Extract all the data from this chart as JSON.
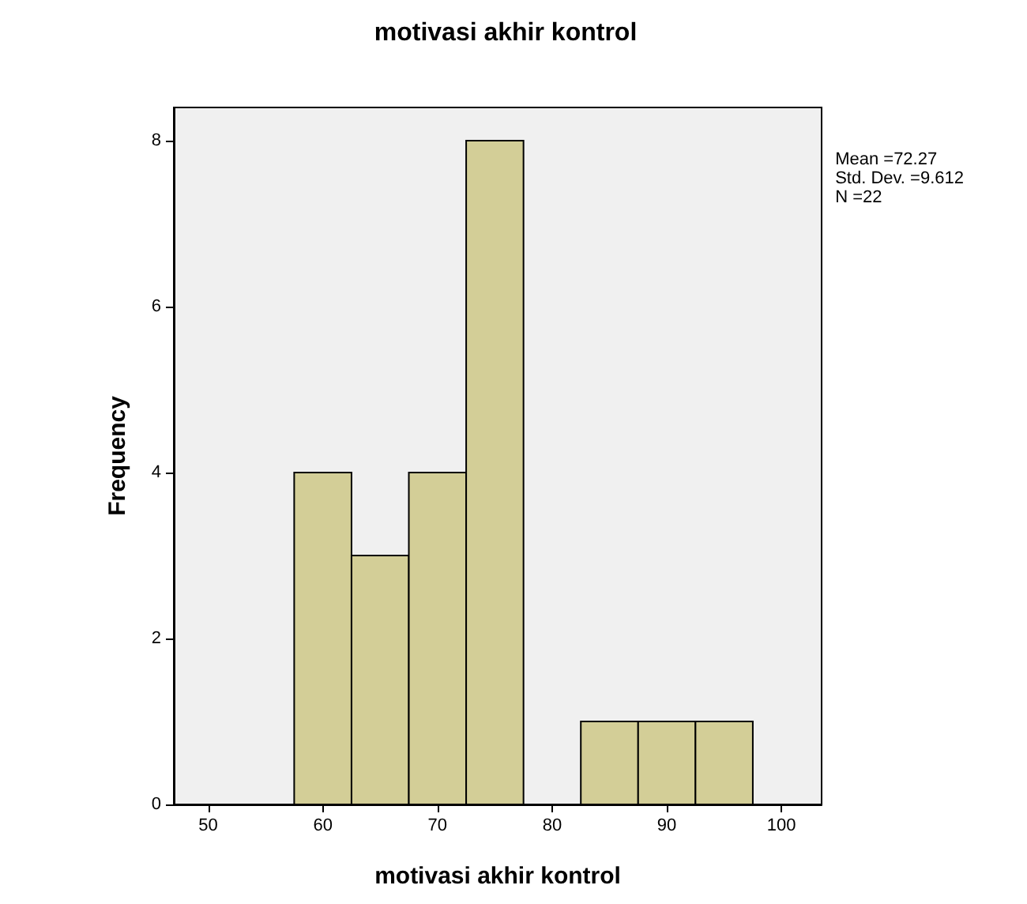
{
  "chart_data": {
    "type": "histogram",
    "title": "motivasi akhir kontrol",
    "xlabel": "motivasi akhir kontrol",
    "ylabel": "Frequency",
    "bins": [
      57.5,
      62.5,
      67.5,
      72.5,
      77.5,
      82.5,
      87.5,
      92.5,
      97.5
    ],
    "values": [
      4,
      3,
      4,
      8,
      0,
      1,
      1,
      1
    ],
    "color": "#d3ce97",
    "xlim": [
      47,
      103.5
    ],
    "xticks": [
      50,
      60,
      70,
      80,
      90,
      100
    ],
    "ylim": [
      0,
      8.4
    ],
    "yticks": [
      0,
      2,
      4,
      6,
      8
    ],
    "grid": false,
    "annotations": [
      "Mean =72.27",
      "Std. Dev. =9.612",
      "N =22"
    ]
  }
}
